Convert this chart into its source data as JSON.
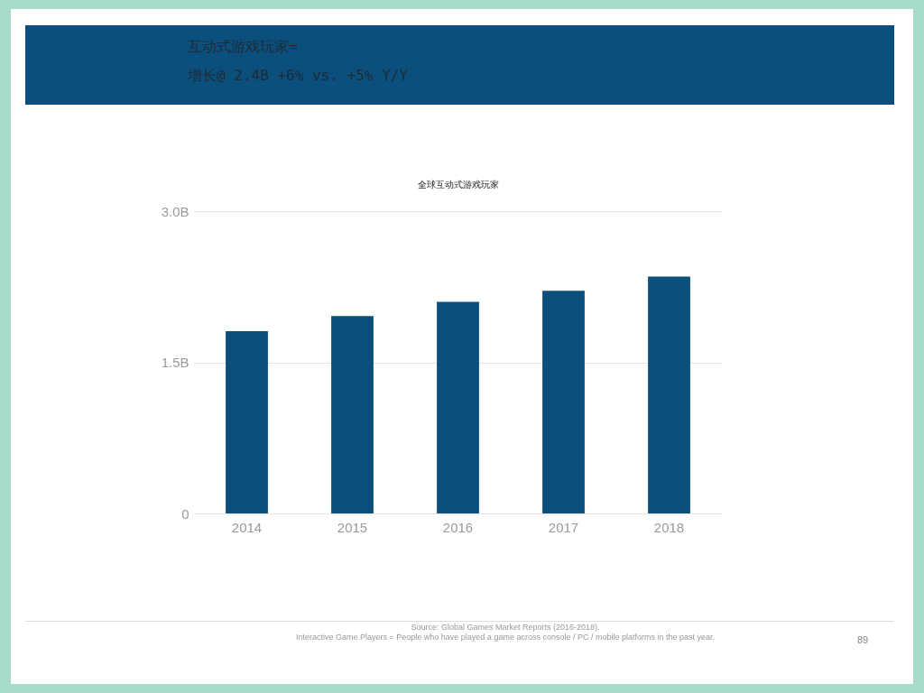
{
  "chart_data": {
    "type": "bar",
    "title": "互动式游戏玩家=",
    "subtitle": "增长@ 2.4B +6% vs.  +5% Y/Y",
    "categories": [
      "2014",
      "2015",
      "2016",
      "2017",
      "2018"
    ],
    "values": [
      1.81,
      1.96,
      2.1,
      2.21,
      2.35
    ],
    "color": "#0b4f7c",
    "ylim": [
      0,
      3
    ],
    "yticks": [
      {
        "value": 0,
        "label": "0"
      },
      {
        "value": 1.5,
        "label": "1.5B"
      },
      {
        "value": 3,
        "label": "3.0B"
      }
    ],
    "grid": "y",
    "annotations": [
      "全球互动式游戏玩家",
      "Source: Global Games Market Reports (2016-2018).",
      "Interactive Game Players = People who have played a game across console / PC / mobile platforms in the past year.",
      "89"
    ]
  }
}
